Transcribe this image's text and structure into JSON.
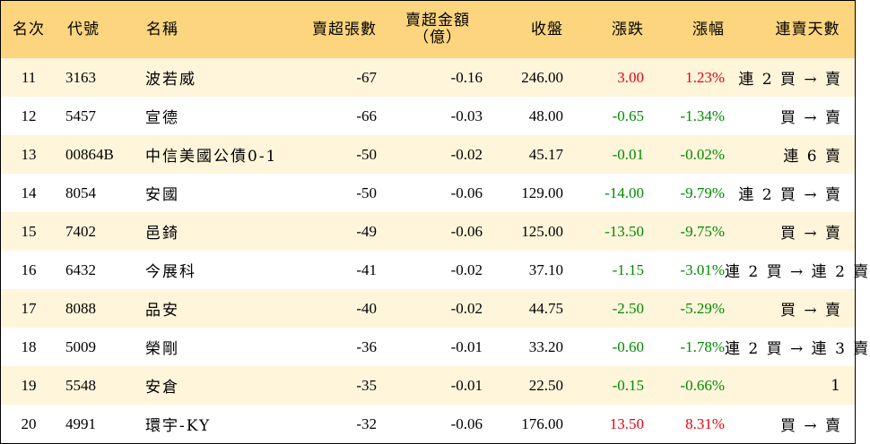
{
  "headers": {
    "rank": "名次",
    "code": "代號",
    "name": "名稱",
    "net_sell_lots": "賣超張數",
    "net_sell_amount_line1": "賣超金額",
    "net_sell_amount_line2": "（億）",
    "close": "收盤",
    "change": "漲跌",
    "change_pct": "漲幅",
    "streak": "連賣天數"
  },
  "colors": {
    "header_bg": "#fcd57e",
    "odd_row_bg": "#fff5db",
    "up": "#e60012",
    "down": "#008a00"
  },
  "rows": [
    {
      "rank": "11",
      "code": "3163",
      "name": "波若威",
      "lots": "-67",
      "amount": "-0.16",
      "close": "246.00",
      "change": "3.00",
      "pct": "1.23%",
      "dir": "up",
      "streak": "連 2 買 → 賣"
    },
    {
      "rank": "12",
      "code": "5457",
      "name": "宣德",
      "lots": "-66",
      "amount": "-0.03",
      "close": "48.00",
      "change": "-0.65",
      "pct": "-1.34%",
      "dir": "down",
      "streak": "買 → 賣"
    },
    {
      "rank": "13",
      "code": "00864B",
      "name": "中信美國公債0-1",
      "lots": "-50",
      "amount": "-0.02",
      "close": "45.17",
      "change": "-0.01",
      "pct": "-0.02%",
      "dir": "down",
      "streak": "連 6 賣"
    },
    {
      "rank": "14",
      "code": "8054",
      "name": "安國",
      "lots": "-50",
      "amount": "-0.06",
      "close": "129.00",
      "change": "-14.00",
      "pct": "-9.79%",
      "dir": "down",
      "streak": "連 2 買 → 賣"
    },
    {
      "rank": "15",
      "code": "7402",
      "name": "邑錡",
      "lots": "-49",
      "amount": "-0.06",
      "close": "125.00",
      "change": "-13.50",
      "pct": "-9.75%",
      "dir": "down",
      "streak": "買 → 賣"
    },
    {
      "rank": "16",
      "code": "6432",
      "name": "今展科",
      "lots": "-41",
      "amount": "-0.02",
      "close": "37.10",
      "change": "-1.15",
      "pct": "-3.01%",
      "dir": "down",
      "streak": "連 2 買 → 連 2 賣"
    },
    {
      "rank": "17",
      "code": "8088",
      "name": "品安",
      "lots": "-40",
      "amount": "-0.02",
      "close": "44.75",
      "change": "-2.50",
      "pct": "-5.29%",
      "dir": "down",
      "streak": "買 → 賣"
    },
    {
      "rank": "18",
      "code": "5009",
      "name": "榮剛",
      "lots": "-36",
      "amount": "-0.01",
      "close": "33.20",
      "change": "-0.60",
      "pct": "-1.78%",
      "dir": "down",
      "streak": "連 2 買 → 連 3 賣"
    },
    {
      "rank": "19",
      "code": "5548",
      "name": "安倉",
      "lots": "-35",
      "amount": "-0.01",
      "close": "22.50",
      "change": "-0.15",
      "pct": "-0.66%",
      "dir": "down",
      "streak": "1"
    },
    {
      "rank": "20",
      "code": "4991",
      "name": "環宇-KY",
      "lots": "-32",
      "amount": "-0.06",
      "close": "176.00",
      "change": "13.50",
      "pct": "8.31%",
      "dir": "up",
      "streak": "買 → 賣"
    }
  ]
}
